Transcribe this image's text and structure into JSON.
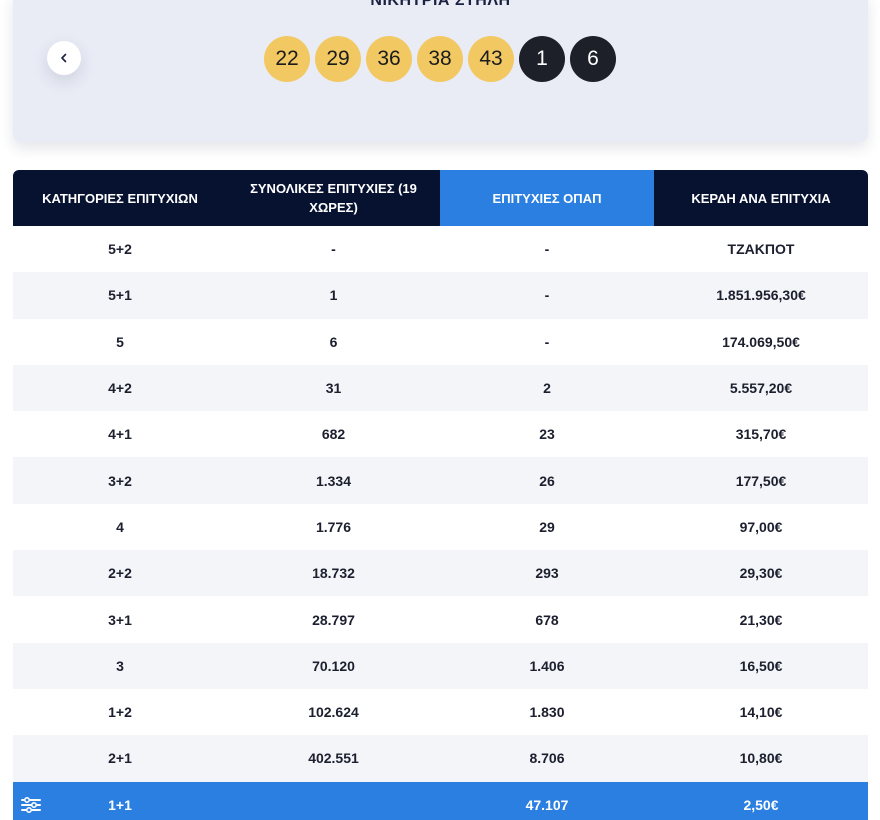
{
  "draw": {
    "title": "ΝΙΚΗΤΡΙΑ ΣΤΗΛΗ",
    "main_numbers": [
      "22",
      "29",
      "36",
      "38",
      "43"
    ],
    "joker_numbers": [
      "1",
      "6"
    ]
  },
  "table": {
    "headers": [
      "ΚΑΤΗΓΟΡΙΕΣ ΕΠΙΤΥΧΙΩΝ",
      "ΣΥΝΟΛΙΚΕΣ ΕΠΙΤΥΧΙΕΣ (19 ΧΩΡΕΣ)",
      "ΕΠΙΤΥΧΙΕΣ ΟΠΑΠ",
      "ΚΕΡΔΗ ΑΝΑ ΕΠΙΤΥΧΙΑ"
    ],
    "rows": [
      [
        "5+2",
        "-",
        "-",
        "ΤΖΑΚΠΟΤ"
      ],
      [
        "5+1",
        "1",
        "-",
        "1.851.956,30€"
      ],
      [
        "5",
        "6",
        "-",
        "174.069,50€"
      ],
      [
        "4+2",
        "31",
        "2",
        "5.557,20€"
      ],
      [
        "4+1",
        "682",
        "23",
        "315,70€"
      ],
      [
        "3+2",
        "1.334",
        "26",
        "177,50€"
      ],
      [
        "4",
        "1.776",
        "29",
        "97,00€"
      ],
      [
        "2+2",
        "18.732",
        "293",
        "29,30€"
      ],
      [
        "3+1",
        "28.797",
        "678",
        "21,30€"
      ],
      [
        "3",
        "70.120",
        "1.406",
        "16,50€"
      ],
      [
        "1+2",
        "102.624",
        "1.830",
        "14,10€"
      ],
      [
        "2+1",
        "402.551",
        "8.706",
        "10,80€"
      ]
    ],
    "final_row": [
      "1+1",
      "",
      "47.107",
      "2,50€"
    ]
  },
  "colors": {
    "header": "#071231",
    "accent": "#2a7fe0",
    "ball_main": "#f2c862",
    "ball_joker": "#1d2028"
  },
  "icons": {
    "back": "chevron-left-icon",
    "menu": "accessibility-menu-icon"
  }
}
